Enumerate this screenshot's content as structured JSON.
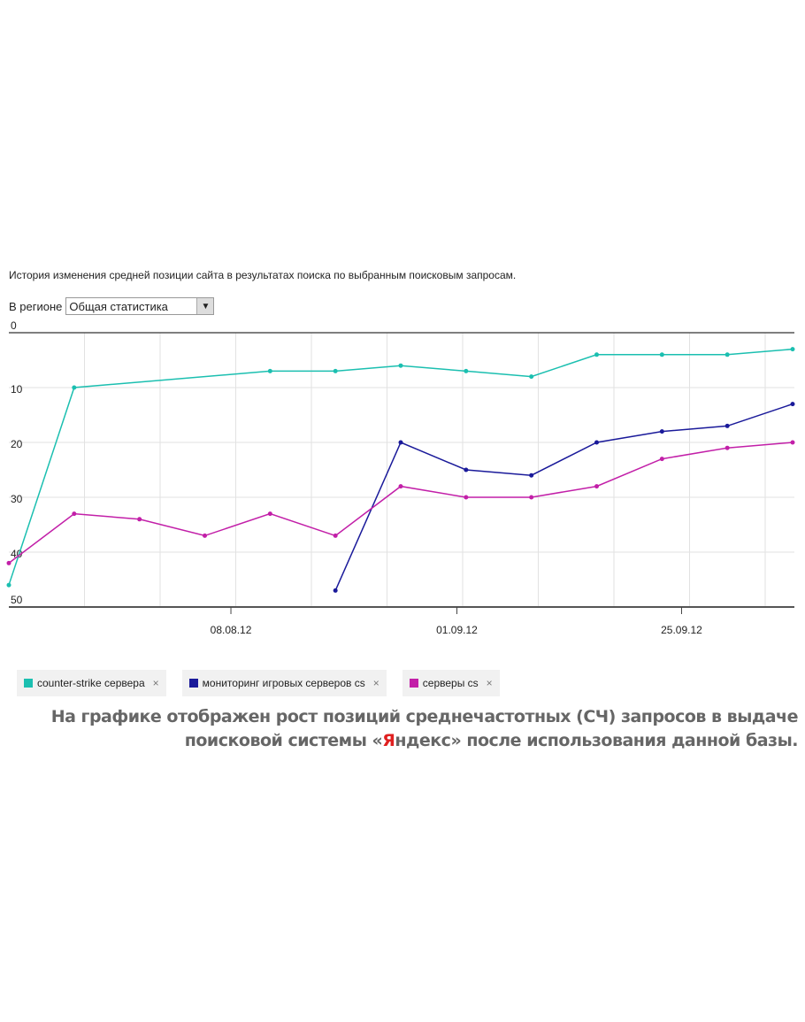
{
  "description": "История изменения средней позиции сайта в результатах поиска по выбранным поисковым запросам.",
  "region": {
    "label": "В регионе",
    "value": "Общая статистика"
  },
  "chart_data": {
    "type": "line",
    "title": "История изменения средней позиции сайта",
    "ylim": [
      0,
      50
    ],
    "y_inverted": true,
    "y_ticks": [
      "0",
      "10",
      "20",
      "30",
      "40",
      "50"
    ],
    "x_points": 13,
    "x_ticks": [
      {
        "label": "08.08.12",
        "index": 3.4
      },
      {
        "label": "01.09.12",
        "index": 6.86
      },
      {
        "label": "25.09.12",
        "index": 10.3
      }
    ],
    "series": [
      {
        "name": "counter-strike сервера",
        "color": "#1bbfb0",
        "points": [
          [
            0,
            46
          ],
          [
            1,
            10
          ],
          [
            4,
            7
          ],
          [
            5,
            7
          ],
          [
            6,
            6
          ],
          [
            7,
            7
          ],
          [
            8,
            8
          ],
          [
            9,
            4
          ],
          [
            10,
            4
          ],
          [
            11,
            4
          ],
          [
            12,
            3
          ]
        ]
      },
      {
        "name": "мониторинг игровых серверов cs",
        "color": "#1a1a9a",
        "points": [
          [
            5,
            47
          ],
          [
            6,
            20
          ],
          [
            7,
            25
          ],
          [
            8,
            26
          ],
          [
            9,
            20
          ],
          [
            10,
            18
          ],
          [
            11,
            17
          ],
          [
            12,
            13
          ]
        ]
      },
      {
        "name": "серверы cs",
        "color": "#c21fa8",
        "points": [
          [
            0,
            42
          ],
          [
            1,
            33
          ],
          [
            2,
            34
          ],
          [
            3,
            37
          ],
          [
            4,
            33
          ],
          [
            5,
            37
          ],
          [
            6,
            28
          ],
          [
            7,
            30
          ],
          [
            8,
            30
          ],
          [
            9,
            28
          ],
          [
            10,
            23
          ],
          [
            11,
            21
          ],
          [
            12,
            20
          ]
        ]
      }
    ]
  },
  "legend_remove": "×",
  "caption": {
    "line1": "На графике отображен рост позиций среднечастотных (СЧ) запросов в выдаче",
    "line2_a": "поисковой системы «",
    "line2_red": "Я",
    "line2_b": "ндекс» после использования данной базы."
  }
}
